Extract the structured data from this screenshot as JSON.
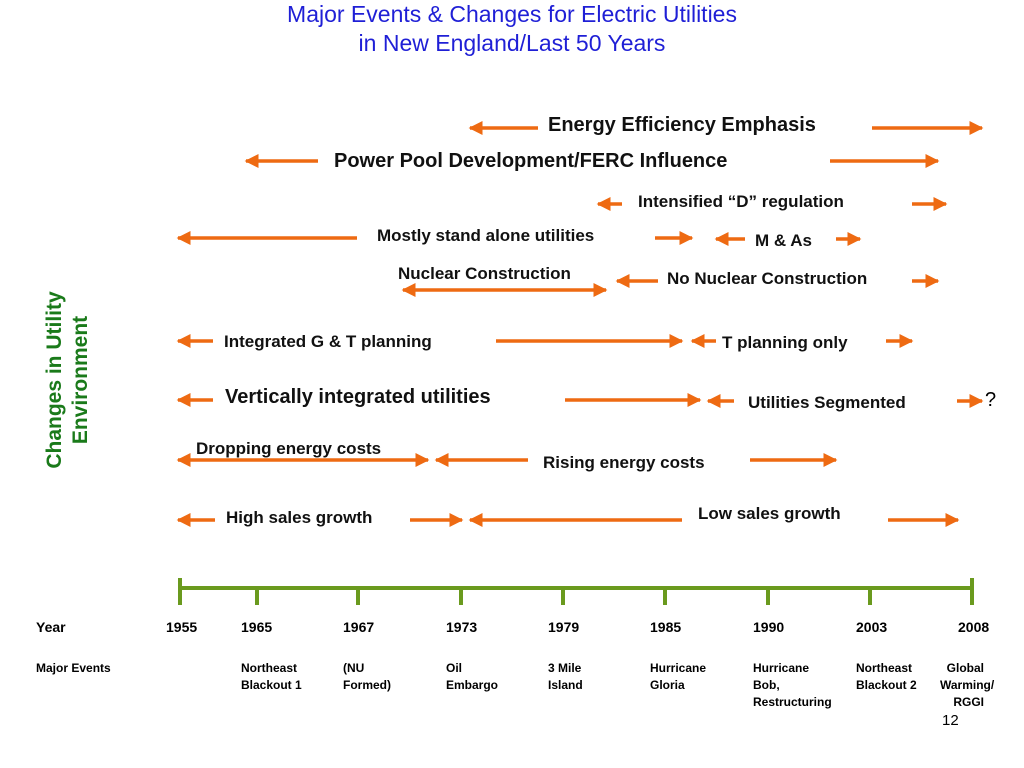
{
  "title": {
    "line1": "Major Events & Changes for Electric Utilities",
    "line2": "in New England/Last 50 Years"
  },
  "side_label": {
    "line1": "Changes in Utility",
    "line2": "Environment"
  },
  "events": {
    "energy_efficiency": "Energy Efficiency Emphasis",
    "power_pool": "Power Pool Development/FERC Influence",
    "intensified_d": "Intensified “D” regulation",
    "stand_alone": "Mostly stand alone utilities",
    "m_and_a": "M & As",
    "nuclear_construction": "Nuclear Construction",
    "no_nuclear_construction": "No Nuclear Construction",
    "integrated_gt": "Integrated G & T planning",
    "t_planning": "T planning only",
    "vertically_integrated": "Vertically integrated utilities",
    "utilities_segmented": "Utilities Segmented",
    "question_mark": "?",
    "dropping_costs": "Dropping energy costs",
    "rising_costs": "Rising energy costs",
    "high_growth": "High sales growth",
    "low_growth": "Low sales growth"
  },
  "timeline": {
    "year_label": "Year",
    "events_label": "Major Events",
    "years": [
      "1955",
      "1965",
      "1967",
      "1973",
      "1979",
      "1985",
      "1990",
      "2003",
      "2008"
    ],
    "major_events": [
      "",
      "Northeast\nBlackout 1",
      "(NU\nFormed)",
      "Oil\nEmbargo",
      "3 Mile\nIsland",
      "Hurricane\nGloria",
      "Hurricane\nBob,\nRestructuring",
      "Northeast\nBlackout 2",
      "  Global\nWarming/\n    RGGI"
    ]
  },
  "page_number": "12",
  "colors": {
    "title": "#1f1fd6",
    "arrow": "#ee6a12",
    "axis": "#6a9a1e",
    "side_label": "#1a7a1a"
  }
}
